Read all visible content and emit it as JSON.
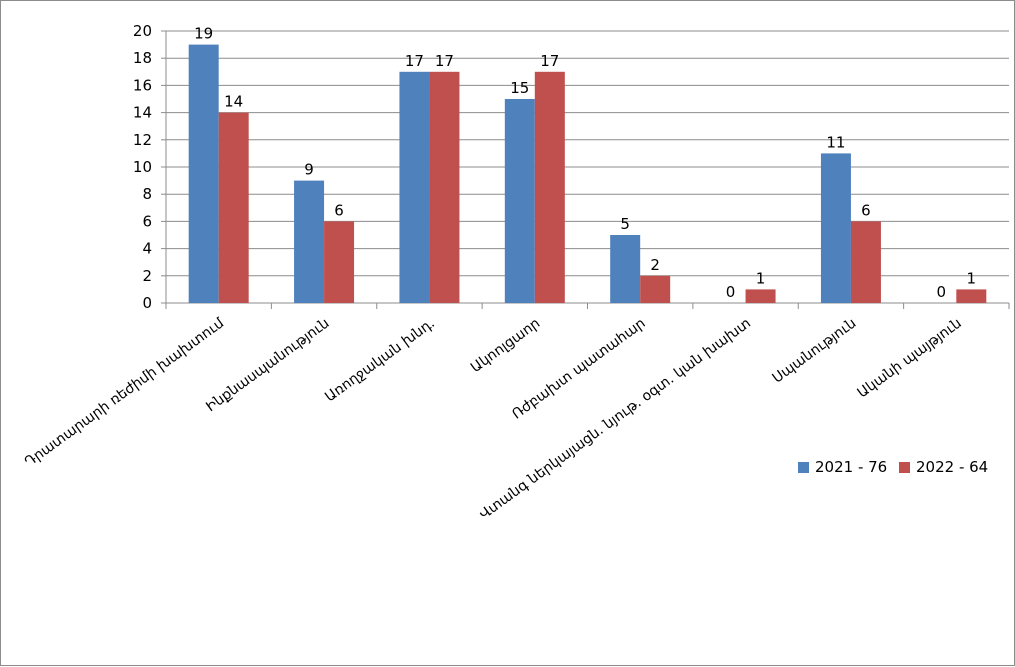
{
  "chart_data": {
    "type": "bar",
    "title": "",
    "xlabel": "",
    "ylabel": "",
    "ylim": [
      0,
      20
    ],
    "ytick_step": 2,
    "grid": true,
    "legend_position": "right",
    "categories": [
      "Դրատարարի ռեժիմի խախտում",
      "Ինքնասպանություն",
      "Առողջական խնդ.",
      "Ակոոլցաոր",
      "Ռժբախտ պատահար",
      "Վտանգ ներկայացն. նյութ. օգտ. կան խախտ",
      "Սպանություն",
      "Ականի պայթյուն"
    ],
    "series": [
      {
        "name": "2021 - 76",
        "color": "#4f81bd",
        "values": [
          19,
          9,
          17,
          15,
          5,
          0,
          11,
          0
        ]
      },
      {
        "name": "2022 - 64",
        "color": "#c0504d",
        "values": [
          14,
          6,
          17,
          17,
          2,
          1,
          6,
          1
        ]
      }
    ]
  }
}
